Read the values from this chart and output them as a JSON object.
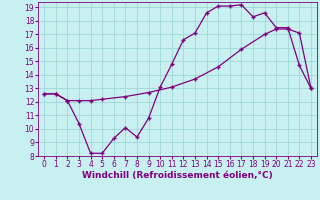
{
  "xlabel": "Windchill (Refroidissement éolien,°C)",
  "bg_color": "#c8f0f0",
  "grid_color": "#a0d8d8",
  "line_color": "#800080",
  "xlim": [
    -0.5,
    23.5
  ],
  "ylim": [
    8,
    19.4
  ],
  "xticks": [
    0,
    1,
    2,
    3,
    4,
    5,
    6,
    7,
    8,
    9,
    10,
    11,
    12,
    13,
    14,
    15,
    16,
    17,
    18,
    19,
    20,
    21,
    22,
    23
  ],
  "yticks": [
    8,
    9,
    10,
    11,
    12,
    13,
    14,
    15,
    16,
    17,
    18,
    19
  ],
  "curve1_x": [
    0,
    1,
    2,
    3,
    4,
    5,
    6,
    7,
    8,
    9,
    10,
    11,
    12,
    13,
    14,
    15,
    16,
    17,
    18,
    19,
    20,
    21,
    22,
    23
  ],
  "curve1_y": [
    12.6,
    12.6,
    12.1,
    10.4,
    8.2,
    8.2,
    9.3,
    10.1,
    9.4,
    10.8,
    13.1,
    14.8,
    16.6,
    17.1,
    18.6,
    19.1,
    19.1,
    19.2,
    18.3,
    18.6,
    17.5,
    17.5,
    14.7,
    13.0
  ],
  "curve2_x": [
    0,
    1,
    2,
    3,
    4,
    5,
    7,
    9,
    11,
    13,
    15,
    17,
    19,
    20,
    21,
    22,
    23
  ],
  "curve2_y": [
    12.6,
    12.6,
    12.1,
    12.1,
    12.1,
    12.2,
    12.4,
    12.7,
    13.1,
    13.7,
    14.6,
    15.9,
    17.0,
    17.4,
    17.4,
    17.1,
    13.0
  ],
  "marker": "+",
  "markersize": 3,
  "linewidth": 0.9,
  "tick_fontsize": 5.5,
  "label_fontsize": 6.5
}
